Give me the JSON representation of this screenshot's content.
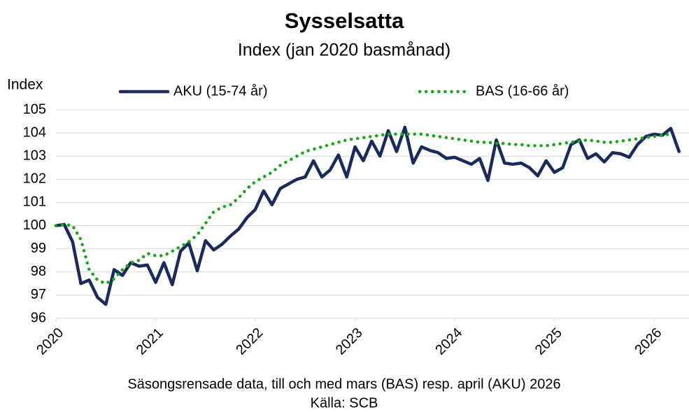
{
  "chart_data": {
    "type": "line",
    "title": "Sysselsatta",
    "subtitle": "Index (jan 2020 basmånad)",
    "y_label": "Index",
    "footer": [
      "Säsongsrensade data, till och med mars (BAS) resp. april (AKU) 2026",
      "Källa: SCB"
    ],
    "x": [
      2020,
      2020.083,
      2020.167,
      2020.25,
      2020.333,
      2020.417,
      2020.5,
      2020.583,
      2020.667,
      2020.75,
      2020.833,
      2020.917,
      2021,
      2021.083,
      2021.167,
      2021.25,
      2021.333,
      2021.417,
      2021.5,
      2021.583,
      2021.667,
      2021.75,
      2021.833,
      2021.917,
      2022,
      2022.083,
      2022.167,
      2022.25,
      2022.333,
      2022.417,
      2022.5,
      2022.583,
      2022.667,
      2022.75,
      2022.833,
      2022.917,
      2023,
      2023.083,
      2023.167,
      2023.25,
      2023.333,
      2023.417,
      2023.5,
      2023.583,
      2023.667,
      2023.75,
      2023.833,
      2023.917,
      2024,
      2024.083,
      2024.167,
      2024.25,
      2024.333,
      2024.417,
      2024.5,
      2024.583,
      2024.667,
      2024.75,
      2024.833,
      2024.917,
      2025,
      2025.083,
      2025.167,
      2025.25,
      2025.333,
      2025.417,
      2025.5,
      2025.583,
      2025.667,
      2025.75,
      2025.833,
      2025.917,
      2026,
      2026.083,
      2026.167,
      2026.25
    ],
    "series": [
      {
        "name": "AKU (15-74 år)",
        "color": "#1b2a5c",
        "style": "solid",
        "values": [
          100.0,
          100.05,
          99.3,
          97.5,
          97.65,
          96.9,
          96.6,
          98.1,
          97.85,
          98.4,
          98.25,
          98.3,
          97.55,
          98.4,
          97.45,
          98.9,
          99.25,
          98.05,
          99.35,
          98.95,
          99.2,
          99.55,
          99.85,
          100.35,
          100.7,
          101.5,
          100.9,
          101.6,
          101.8,
          102.0,
          102.1,
          102.8,
          102.1,
          102.4,
          103.05,
          102.1,
          103.4,
          102.8,
          103.65,
          103.0,
          104.1,
          103.2,
          104.25,
          102.7,
          103.4,
          103.25,
          103.15,
          102.9,
          102.95,
          102.8,
          102.65,
          102.9,
          101.95,
          103.7,
          102.7,
          102.65,
          102.7,
          102.5,
          102.15,
          102.8,
          102.3,
          102.5,
          103.5,
          103.7,
          102.9,
          103.1,
          102.75,
          103.15,
          103.1,
          102.95,
          103.5,
          103.85,
          103.95,
          103.9,
          104.2,
          103.2
        ]
      },
      {
        "name": "BAS (16-66 år)",
        "color": "#1aa51a",
        "style": "dotted",
        "values": [
          100.0,
          100.05,
          100.0,
          99.4,
          98.1,
          97.65,
          97.5,
          97.7,
          98.1,
          98.4,
          98.5,
          98.8,
          98.7,
          98.7,
          98.9,
          99.1,
          99.3,
          99.6,
          100.1,
          100.6,
          100.8,
          100.9,
          101.2,
          101.6,
          101.9,
          102.1,
          102.3,
          102.6,
          102.8,
          103.0,
          103.2,
          103.3,
          103.4,
          103.5,
          103.6,
          103.7,
          103.75,
          103.8,
          103.85,
          103.9,
          103.95,
          103.95,
          103.95,
          103.95,
          103.95,
          103.9,
          103.85,
          103.8,
          103.75,
          103.7,
          103.65,
          103.6,
          103.6,
          103.55,
          103.55,
          103.5,
          103.5,
          103.45,
          103.45,
          103.45,
          103.5,
          103.55,
          103.6,
          103.65,
          103.7,
          103.65,
          103.6,
          103.6,
          103.65,
          103.7,
          103.75,
          103.8,
          103.85,
          103.9,
          103.95,
          null
        ]
      }
    ],
    "xlim": [
      2020,
      2026.35
    ],
    "xticks": [
      2020,
      2021,
      2022,
      2023,
      2024,
      2025,
      2026
    ],
    "ylim": [
      96,
      105
    ],
    "yticks": [
      96,
      97,
      98,
      99,
      100,
      101,
      102,
      103,
      104,
      105
    ],
    "grid": true,
    "legend": "top"
  }
}
